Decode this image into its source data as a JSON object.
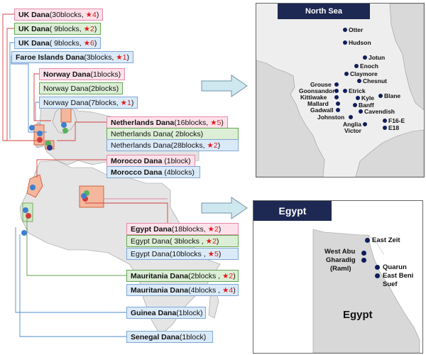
{
  "colors": {
    "pink_box": "#fde1ea",
    "green_box": "#dcefd6",
    "blue_box": "#dbeaf8",
    "panel_title": "#1d2853",
    "field_dot": "#101d5c",
    "star": "#e01818"
  },
  "star_glyph": "★",
  "labels": [
    {
      "name": "UK Dana",
      "detail": "(30blocks, ",
      "stars": "4",
      "close": ")",
      "style": "pink"
    },
    {
      "name": "UK  Dana",
      "detail": "( 9blocks, ",
      "stars": "2",
      "close": ")",
      "style": "green"
    },
    {
      "name": "UK  Dana",
      "detail": "( 9blocks, ",
      "stars": "6",
      "close": ")",
      "style": "blue"
    },
    {
      "name": "Faroe Islands Dana",
      "detail": "(3blocks, ",
      "stars": "1",
      "close": ")",
      "style": "blue"
    },
    {
      "name": "Norway Dana",
      "detail": "(1blocks)",
      "stars": "",
      "close": "",
      "style": "pink"
    },
    {
      "name": "",
      "detail": "Norway Dana(2blocks)",
      "stars": "",
      "close": "",
      "style": "green"
    },
    {
      "name": "",
      "detail": "Norway Dana(7blocks, ",
      "stars": "1",
      "close": ")",
      "style": "blue"
    },
    {
      "name": "Netherlands Dana",
      "detail": "(16blocks, ",
      "stars": "5",
      "close": ")",
      "style": "pink"
    },
    {
      "name": "",
      "detail": "Netherlands Dana( 2blocks)",
      "stars": "",
      "close": "",
      "style": "green"
    },
    {
      "name": "",
      "detail": "Netherlands Dana(28blocks, ",
      "stars": "2",
      "close": ")",
      "style": "blue"
    },
    {
      "name": "Morocco Dana",
      "detail": " (1block)",
      "stars": "",
      "close": "",
      "style": "pink"
    },
    {
      "name": "Morocco Dana",
      "detail": " (4blocks)",
      "stars": "",
      "close": "",
      "style": "blue"
    },
    {
      "name": "Egypt Dana",
      "detail": "(18blocks, ",
      "stars": "2",
      "close": ")",
      "style": "pink"
    },
    {
      "name": "",
      "detail": "Egypt Dana( 3blocks , ",
      "stars": "2",
      "close": ")",
      "style": "green"
    },
    {
      "name": "",
      "detail": "Egypt Dana(10blocks , ",
      "stars": "5",
      "close": ")",
      "style": "blue"
    },
    {
      "name": "Mauritania Dana",
      "detail": "(2blocks , ",
      "stars": "2",
      "close": ")",
      "style": "green"
    },
    {
      "name": "Mauritania Dana",
      "detail": "(4blocks , ",
      "stars": "4",
      "close": ")",
      "style": "blue"
    },
    {
      "name": "Guinea Dana",
      "detail": "(1block)",
      "stars": "",
      "close": "",
      "style": "blue"
    },
    {
      "name": "Senegal Dana",
      "detail": "(1block)",
      "stars": "",
      "close": "",
      "style": "blue"
    }
  ],
  "north_sea": {
    "title": "North Sea",
    "fields": [
      "Otter",
      "Hudson",
      "Jotun",
      "Enoch",
      "Claymore",
      "Chesnut",
      "Grouse",
      "Goonsandor",
      "Kittiwake",
      "Mallard",
      "Gadwall",
      "Etrick",
      "Kyle",
      "Banff",
      "Blane",
      "Cavendish",
      "Johnston",
      "Anglia",
      "Victor",
      "F16-E",
      "E18"
    ]
  },
  "egypt": {
    "title": "Egypt",
    "fields": [
      "East Zeit",
      "West Abu Gharadig (Raml)",
      "Quarun",
      "East Beni Suef"
    ],
    "field_lines": {
      "west_abu_1": "West Abu",
      "west_abu_2": "Gharadig",
      "west_abu_3": "(Raml)",
      "beni_1": "East Beni",
      "beni_2": "Suef"
    },
    "country_label": "Egypt"
  }
}
